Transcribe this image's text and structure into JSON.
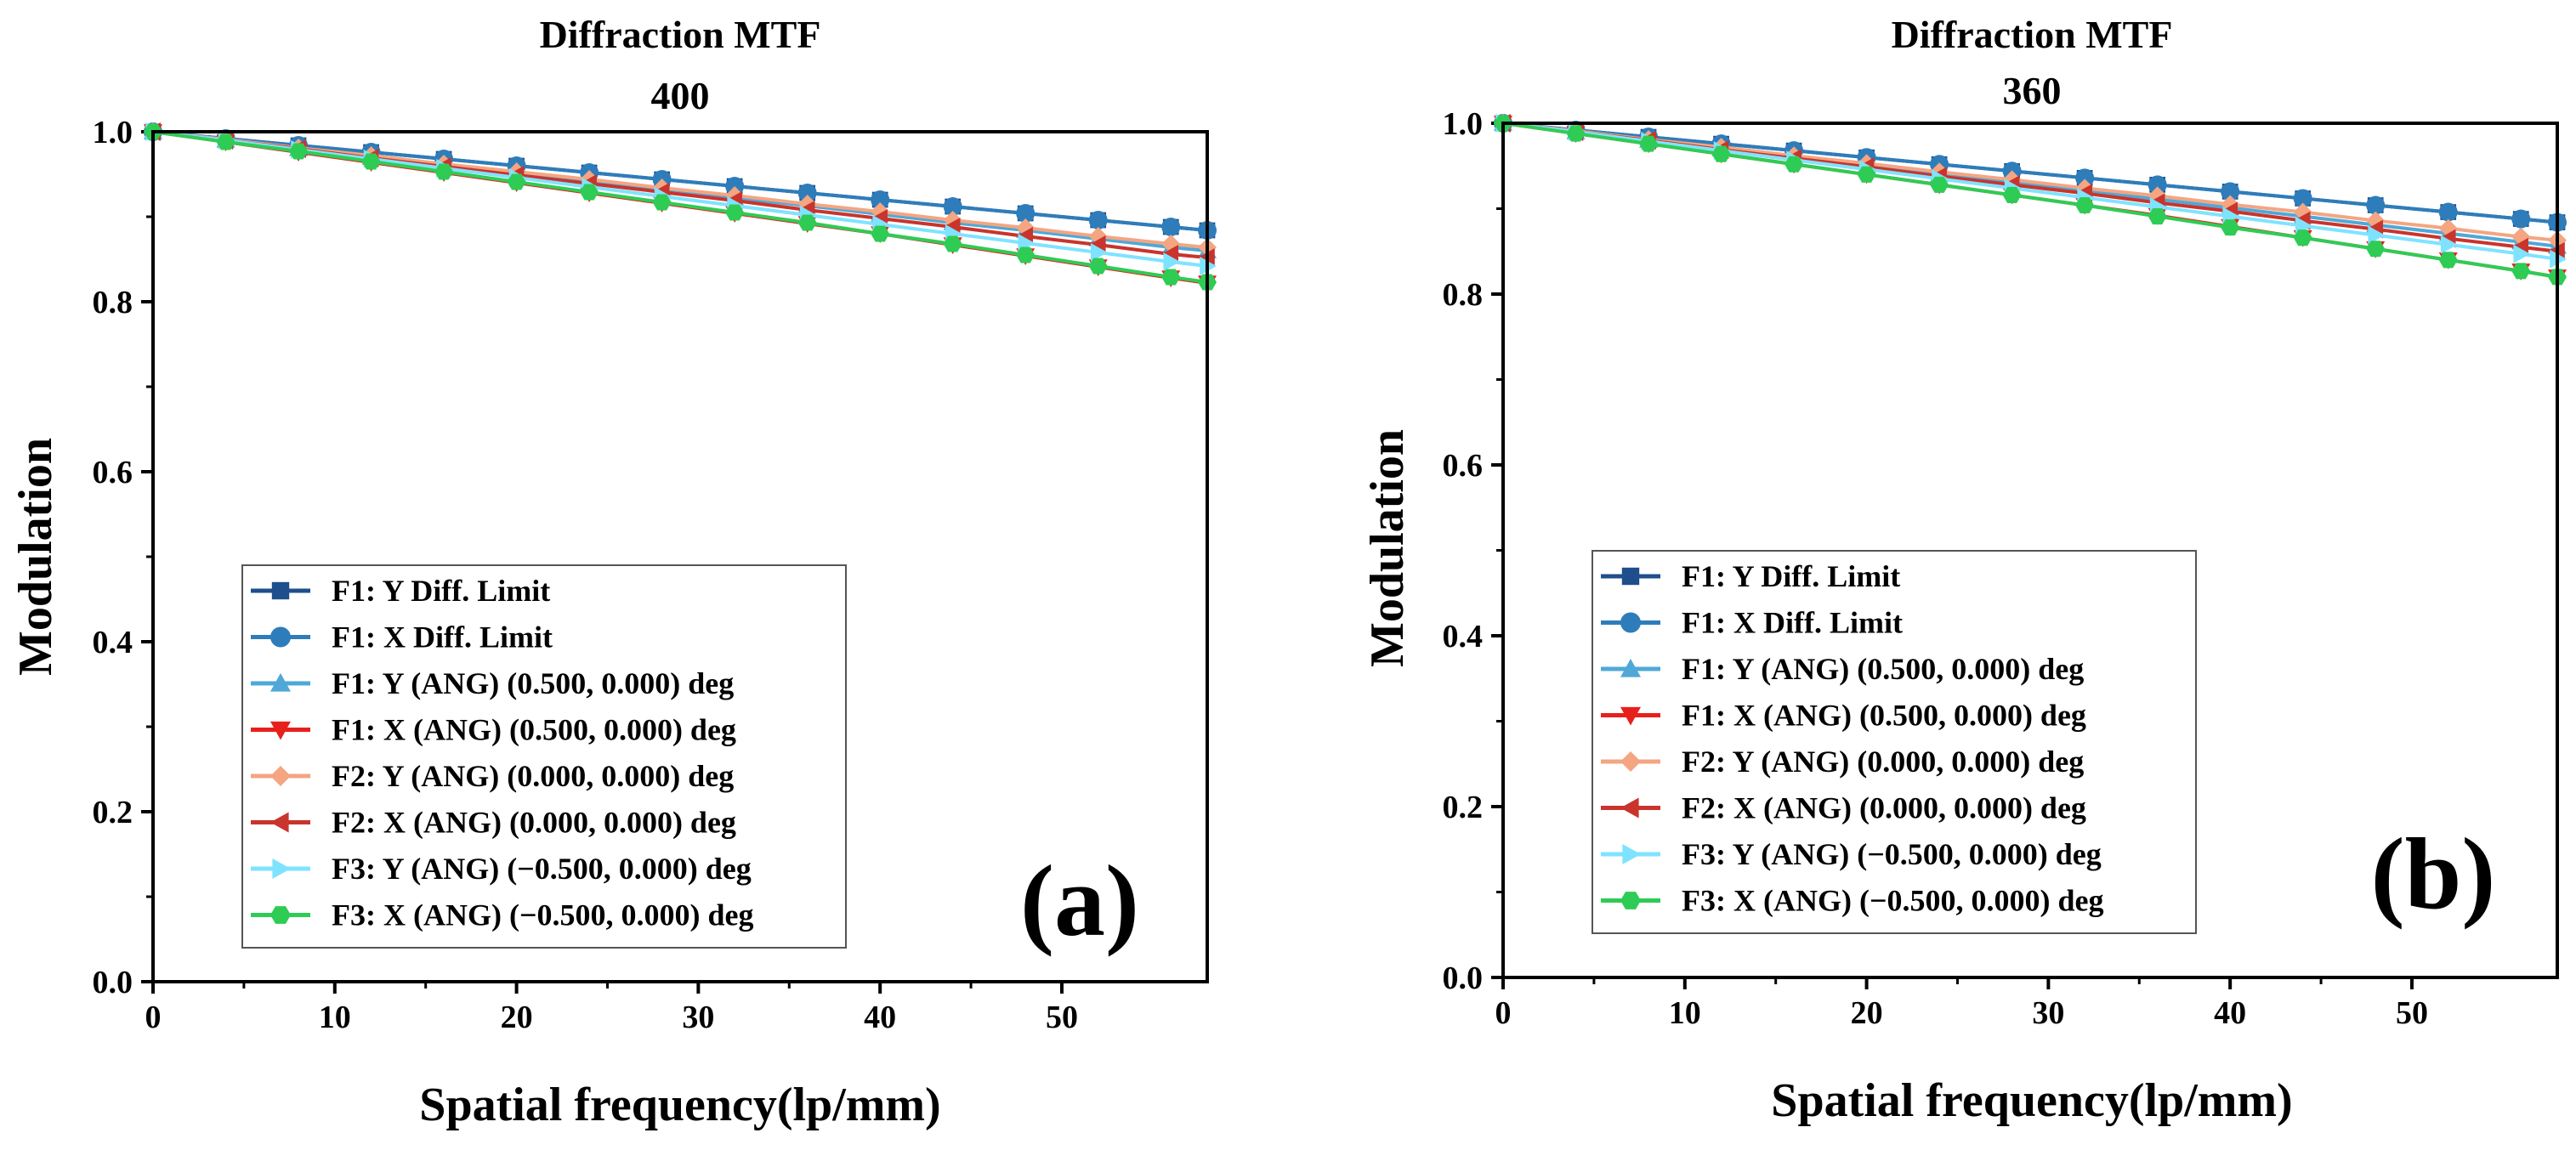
{
  "chart_data": [
    {
      "type": "line",
      "title": "Diffraction MTF",
      "subtitle": "400",
      "panel_label": "(a)",
      "xlabel": "Spatial frequency(lp/mm)",
      "ylabel": "Modulation",
      "xlim": [
        0,
        58
      ],
      "ylim": [
        0,
        1.0
      ],
      "xticks": [
        0,
        10,
        20,
        30,
        40,
        50
      ],
      "xtick_labels": [
        "0",
        "10",
        "20",
        "30",
        "40",
        "50"
      ],
      "yticks": [
        0,
        0.2,
        0.4,
        0.6,
        0.8,
        1.0
      ],
      "ytick_labels": [
        "0.0",
        "0.2",
        "0.4",
        "0.6",
        "0.8",
        "1.0"
      ],
      "x": [
        0,
        4,
        8,
        12,
        16,
        20,
        24,
        28,
        32,
        36,
        40,
        44,
        48,
        52,
        56,
        58
      ],
      "legend_position": "bottom-left",
      "series": [
        {
          "name": "F1: Y Diff. Limit",
          "color": "#1f4e8c",
          "marker": "square",
          "values": [
            1.0,
            0.992,
            0.984,
            0.976,
            0.968,
            0.96,
            0.952,
            0.944,
            0.936,
            0.928,
            0.92,
            0.912,
            0.904,
            0.896,
            0.888,
            0.884
          ]
        },
        {
          "name": "F1: X Diff. Limit",
          "color": "#2e7dba",
          "marker": "circle",
          "values": [
            1.0,
            0.992,
            0.984,
            0.976,
            0.968,
            0.96,
            0.952,
            0.944,
            0.936,
            0.928,
            0.92,
            0.912,
            0.904,
            0.896,
            0.888,
            0.884
          ]
        },
        {
          "name": "F1: Y (ANG) (0.500, 0.000) deg",
          "color": "#4fa8d8",
          "marker": "triangle-up",
          "values": [
            1.0,
            0.99,
            0.98,
            0.97,
            0.961,
            0.951,
            0.941,
            0.932,
            0.922,
            0.913,
            0.903,
            0.893,
            0.884,
            0.874,
            0.864,
            0.86
          ]
        },
        {
          "name": "F1: X (ANG) (0.500, 0.000) deg",
          "color": "#e8201c",
          "marker": "triangle-down",
          "values": [
            1.0,
            0.988,
            0.976,
            0.964,
            0.952,
            0.94,
            0.928,
            0.916,
            0.904,
            0.892,
            0.88,
            0.867,
            0.854,
            0.841,
            0.828,
            0.822
          ]
        },
        {
          "name": "F2: Y (ANG) (0.000, 0.000) deg",
          "color": "#f4a582",
          "marker": "diamond",
          "values": [
            1.0,
            0.991,
            0.981,
            0.972,
            0.962,
            0.953,
            0.944,
            0.934,
            0.925,
            0.915,
            0.906,
            0.896,
            0.887,
            0.877,
            0.868,
            0.864
          ]
        },
        {
          "name": "F2: X (ANG) (0.000, 0.000) deg",
          "color": "#c9342c",
          "marker": "triangle-left",
          "values": [
            1.0,
            0.99,
            0.98,
            0.969,
            0.959,
            0.949,
            0.939,
            0.929,
            0.919,
            0.908,
            0.898,
            0.888,
            0.877,
            0.867,
            0.856,
            0.852
          ]
        },
        {
          "name": "F3: Y (ANG) (−0.500, 0.000) deg",
          "color": "#7fe3ff",
          "marker": "triangle-right",
          "values": [
            1.0,
            0.99,
            0.979,
            0.968,
            0.957,
            0.946,
            0.935,
            0.924,
            0.913,
            0.902,
            0.891,
            0.88,
            0.869,
            0.858,
            0.847,
            0.842
          ]
        },
        {
          "name": "F3: X (ANG) (−0.500, 0.000) deg",
          "color": "#2ecc55",
          "marker": "hexagon",
          "values": [
            1.0,
            0.988,
            0.977,
            0.965,
            0.953,
            0.941,
            0.929,
            0.917,
            0.905,
            0.893,
            0.88,
            0.868,
            0.855,
            0.842,
            0.829,
            0.823
          ]
        }
      ]
    },
    {
      "type": "line",
      "title": "Diffraction MTF",
      "subtitle": "360",
      "panel_label": "(b)",
      "xlabel": "Spatial frequency(lp/mm)",
      "ylabel": "Modulation",
      "xlim": [
        0,
        58
      ],
      "ylim": [
        0,
        1.0
      ],
      "xticks": [
        0,
        10,
        20,
        30,
        40,
        50
      ],
      "xtick_labels": [
        "0",
        "10",
        "20",
        "30",
        "40",
        "50"
      ],
      "yticks": [
        0,
        0.2,
        0.4,
        0.6,
        0.8,
        1.0
      ],
      "ytick_labels": [
        "0.0",
        "0.2",
        "0.4",
        "0.6",
        "0.8",
        "1.0"
      ],
      "x": [
        0,
        4,
        8,
        12,
        16,
        20,
        24,
        28,
        32,
        36,
        40,
        44,
        48,
        52,
        56,
        58
      ],
      "legend_position": "bottom-left",
      "series": [
        {
          "name": "F1: Y Diff. Limit",
          "color": "#1f4e8c",
          "marker": "square",
          "values": [
            1.0,
            0.992,
            0.984,
            0.976,
            0.968,
            0.96,
            0.952,
            0.944,
            0.936,
            0.928,
            0.92,
            0.912,
            0.904,
            0.896,
            0.888,
            0.884
          ]
        },
        {
          "name": "F1: X Diff. Limit",
          "color": "#2e7dba",
          "marker": "circle",
          "values": [
            1.0,
            0.992,
            0.984,
            0.976,
            0.968,
            0.96,
            0.952,
            0.944,
            0.936,
            0.928,
            0.92,
            0.912,
            0.904,
            0.896,
            0.888,
            0.884
          ]
        },
        {
          "name": "F1: Y (ANG) (0.500, 0.000) deg",
          "color": "#4fa8d8",
          "marker": "triangle-up",
          "values": [
            1.0,
            0.99,
            0.98,
            0.97,
            0.96,
            0.95,
            0.94,
            0.931,
            0.921,
            0.911,
            0.901,
            0.891,
            0.881,
            0.871,
            0.861,
            0.856
          ]
        },
        {
          "name": "F1: X (ANG) (0.500, 0.000) deg",
          "color": "#e8201c",
          "marker": "triangle-down",
          "values": [
            1.0,
            0.988,
            0.976,
            0.964,
            0.952,
            0.94,
            0.928,
            0.916,
            0.904,
            0.892,
            0.879,
            0.866,
            0.853,
            0.84,
            0.827,
            0.82
          ]
        },
        {
          "name": "F2: Y (ANG) (0.000, 0.000) deg",
          "color": "#f4a582",
          "marker": "diamond",
          "values": [
            1.0,
            0.991,
            0.981,
            0.972,
            0.962,
            0.953,
            0.943,
            0.934,
            0.924,
            0.915,
            0.905,
            0.896,
            0.886,
            0.877,
            0.867,
            0.863
          ]
        },
        {
          "name": "F2: X (ANG) (0.000, 0.000) deg",
          "color": "#c9342c",
          "marker": "triangle-left",
          "values": [
            1.0,
            0.99,
            0.98,
            0.969,
            0.959,
            0.949,
            0.938,
            0.928,
            0.918,
            0.907,
            0.897,
            0.886,
            0.876,
            0.865,
            0.855,
            0.85
          ]
        },
        {
          "name": "F3: Y (ANG) (−0.500, 0.000) deg",
          "color": "#7fe3ff",
          "marker": "triangle-right",
          "values": [
            1.0,
            0.99,
            0.979,
            0.968,
            0.957,
            0.946,
            0.935,
            0.924,
            0.913,
            0.902,
            0.891,
            0.88,
            0.869,
            0.858,
            0.847,
            0.841
          ]
        },
        {
          "name": "F3: X (ANG) (−0.500, 0.000) deg",
          "color": "#2ecc55",
          "marker": "hexagon",
          "values": [
            1.0,
            0.988,
            0.976,
            0.964,
            0.952,
            0.94,
            0.928,
            0.916,
            0.904,
            0.891,
            0.878,
            0.866,
            0.853,
            0.84,
            0.827,
            0.82
          ]
        }
      ]
    }
  ]
}
